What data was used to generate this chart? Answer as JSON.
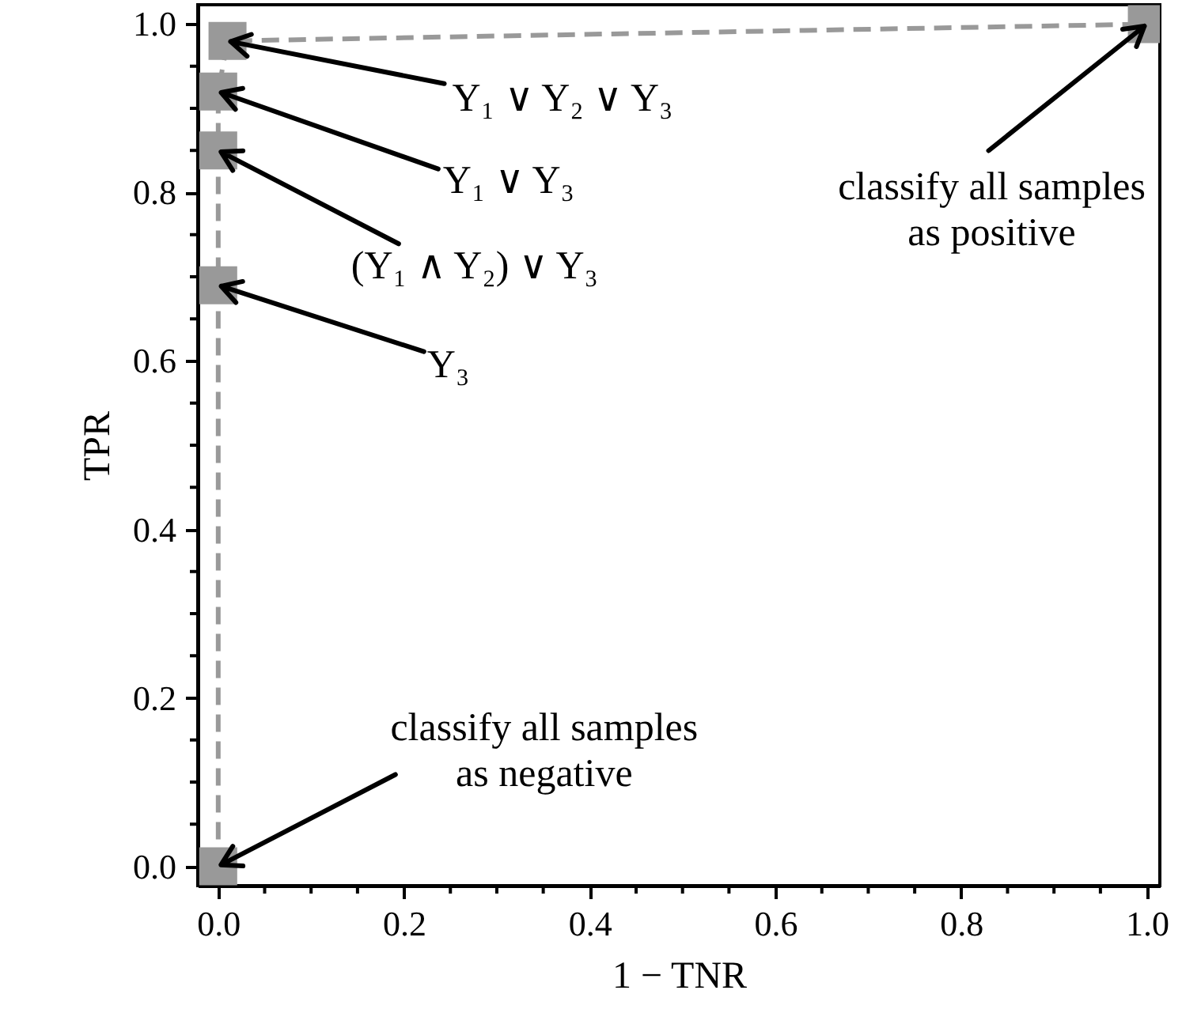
{
  "chart_data": {
    "type": "line",
    "xlabel": "1 − TNR",
    "ylabel": "TPR",
    "x": [
      0,
      0,
      0,
      0,
      0.01,
      1
    ],
    "series": [
      {
        "color": "#999999",
        "values": [
          0,
          0.69,
          0.85,
          0.92,
          0.98,
          1
        ]
      }
    ],
    "marker": "square",
    "line_style": "dashed",
    "xlim": [
      -0.022,
      1.014
    ],
    "ylim": [
      -0.023,
      1.023
    ],
    "xticks": [
      {
        "value": 0,
        "label": "0.0"
      },
      {
        "value": 0.05,
        "label": null
      },
      {
        "value": 0.1,
        "label": null
      },
      {
        "value": 0.15,
        "label": null
      },
      0.2,
      {
        "value": 0.25,
        "label": null
      },
      {
        "value": 0.3,
        "label": null
      },
      {
        "value": 0.35,
        "label": null
      },
      0.4,
      {
        "value": 0.45,
        "label": null
      },
      {
        "value": 0.5,
        "label": null
      },
      {
        "value": 0.55,
        "label": null
      },
      0.6,
      {
        "value": 0.65,
        "label": null
      },
      {
        "value": 0.7,
        "label": null
      },
      {
        "value": 0.75,
        "label": null
      },
      0.8,
      {
        "value": 0.85,
        "label": null
      },
      {
        "value": 0.9,
        "label": null
      },
      {
        "value": 0.95,
        "label": null
      },
      {
        "value": 1,
        "label": "1.0"
      }
    ],
    "yticks": [
      {
        "value": 0,
        "label": "0.0"
      },
      {
        "value": 0.05,
        "label": null
      },
      {
        "value": 0.1,
        "label": null
      },
      {
        "value": 0.15,
        "label": null
      },
      0.2,
      {
        "value": 0.25,
        "label": null
      },
      {
        "value": 0.3,
        "label": null
      },
      {
        "value": 0.35,
        "label": null
      },
      0.4,
      {
        "value": 0.45,
        "label": null
      },
      {
        "value": 0.5,
        "label": null
      },
      {
        "value": 0.55,
        "label": null
      },
      0.6,
      {
        "value": 0.65,
        "label": null
      },
      {
        "value": 0.7,
        "label": null
      },
      {
        "value": 0.75,
        "label": null
      },
      0.8,
      {
        "value": 0.85,
        "label": null
      },
      {
        "value": 0.9,
        "label": null
      },
      {
        "value": 0.95,
        "label": null
      },
      {
        "value": 1,
        "label": "1.0"
      }
    ],
    "annotations": [
      {
        "text": "Y₁ ∨ Y₂ ∨ Y₃",
        "x": 0.01,
        "y": 0.98
      },
      {
        "text": "Y₁ ∨ Y₃",
        "x": 0,
        "y": 0.92
      },
      {
        "text": "(Y₁ ∧ Y₂) ∨ Y₃",
        "x": 0,
        "y": 0.85
      },
      {
        "text": "Y₃",
        "x": 0,
        "y": 0.69
      },
      {
        "text": "classify all samples\nas negative",
        "x": 0,
        "y": 0
      },
      {
        "text": "classify all samples\nas positive",
        "x": 1,
        "y": 1
      }
    ]
  }
}
